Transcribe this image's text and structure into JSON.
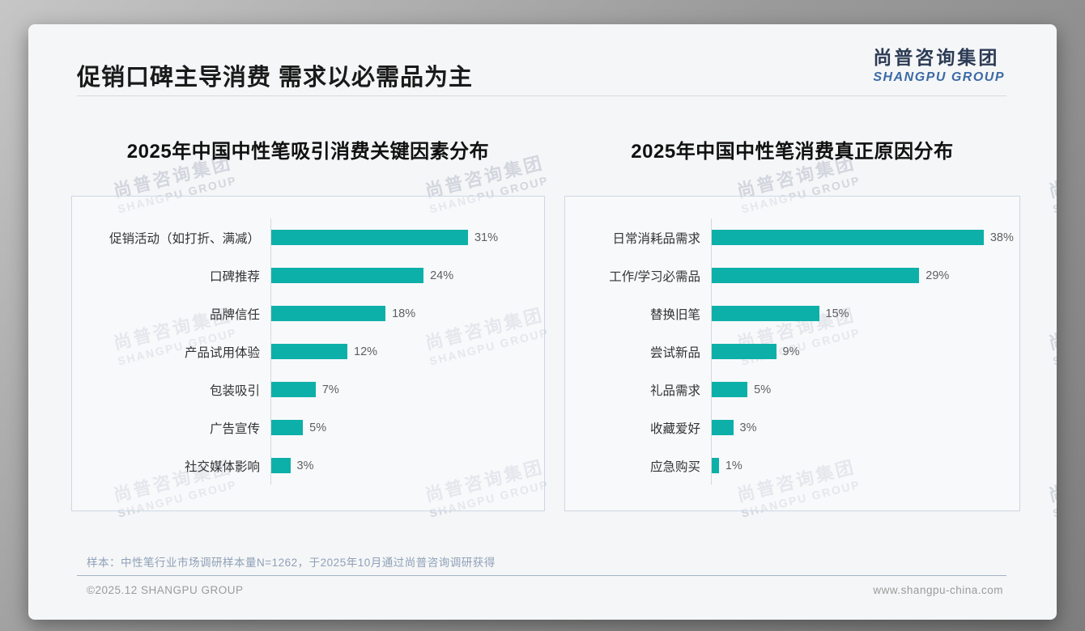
{
  "page": {
    "title": "促销口碑主导消费 需求以必需品为主",
    "sample_note": "样本：中性笔行业市场调研样本量N=1262，于2025年10月通过尚普咨询调研获得",
    "footer_left": "©2025.12 SHANGPU GROUP",
    "footer_right": "www.shangpu-china.com"
  },
  "logo": {
    "cn": "尚普咨询集团",
    "en": "SHANGPU GROUP"
  },
  "watermark": {
    "cn": "尚普咨询集团",
    "en": "SHANGPU GROUP"
  },
  "colors": {
    "bar": "#0db0a8",
    "logo_cn": "#2c3b55",
    "logo_en": "#3b6aa5"
  },
  "chart_data": [
    {
      "type": "bar",
      "orientation": "horizontal",
      "title": "2025年中国中性笔吸引消费关键因素分布",
      "categories": [
        "促销活动（如打折、满减）",
        "口碑推荐",
        "品牌信任",
        "产品试用体验",
        "包装吸引",
        "广告宣传",
        "社交媒体影响"
      ],
      "values": [
        31,
        24,
        18,
        12,
        7,
        5,
        3
      ],
      "unit": "%",
      "xlim": [
        0,
        43
      ],
      "grid": false,
      "legend": false
    },
    {
      "type": "bar",
      "orientation": "horizontal",
      "title": "2025年中国中性笔消费真正原因分布",
      "categories": [
        "日常消耗品需求",
        "工作/学习必需品",
        "替换旧笔",
        "尝试新品",
        "礼品需求",
        "收藏爱好",
        "应急购买"
      ],
      "values": [
        38,
        29,
        15,
        9,
        5,
        3,
        1
      ],
      "unit": "%",
      "xlim": [
        0,
        43
      ],
      "grid": false,
      "legend": false
    }
  ]
}
